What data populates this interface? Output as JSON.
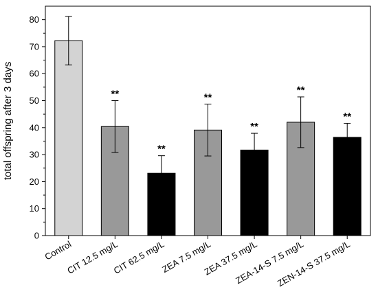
{
  "chart_data": {
    "type": "bar",
    "title": "",
    "xlabel": "",
    "ylabel": "total offspring after 3 days",
    "ylim": [
      0,
      85
    ],
    "yticks": [
      0,
      10,
      20,
      30,
      40,
      50,
      60,
      70,
      80
    ],
    "grid": false,
    "categories": [
      "Control",
      "CIT 12.5 mg/L",
      "CIT 62.5 mg/L",
      "ZEA 7.5 mg/L",
      "ZEA 37.5 mg/L",
      "ZEA-14-S 7.5 mg/L",
      "ZEN-14-S 37.5 mg/L"
    ],
    "values": [
      72.2,
      40.4,
      23.1,
      39.1,
      31.7,
      42.0,
      36.4
    ],
    "errors": [
      9.0,
      9.6,
      6.5,
      9.6,
      6.2,
      9.4,
      5.2
    ],
    "significance": [
      "",
      "**",
      "**",
      "**",
      "**",
      "**",
      "**"
    ],
    "colors": [
      "#d3d3d3",
      "#999999",
      "#000000",
      "#999999",
      "#000000",
      "#999999",
      "#000000"
    ]
  }
}
